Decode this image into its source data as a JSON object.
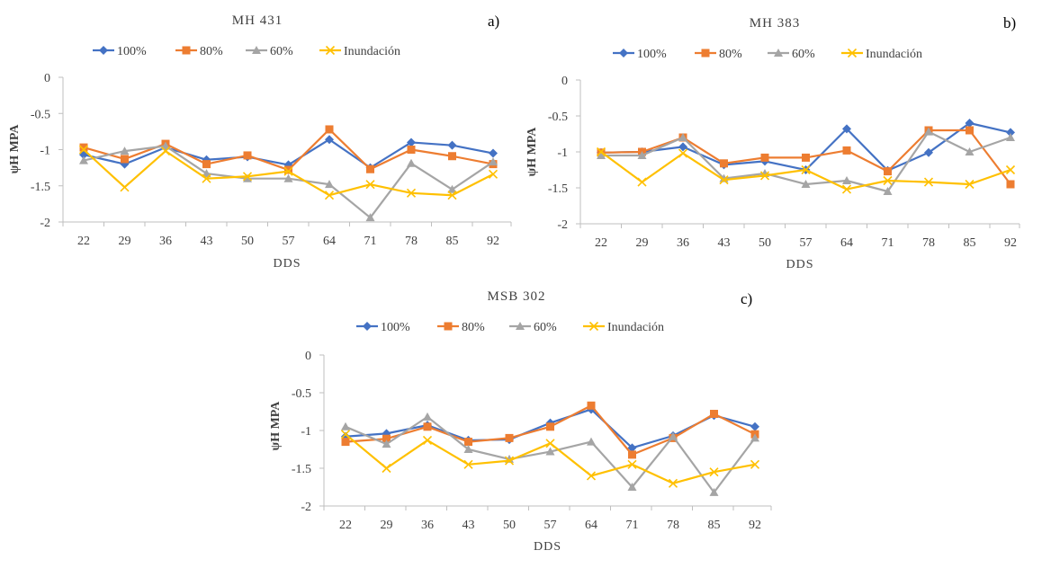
{
  "colors": {
    "100%": "#4472c4",
    "80%": "#ed7d31",
    "60%": "#a5a5a5",
    "Inundación": "#ffc000"
  },
  "chart_data": [
    {
      "type": "line",
      "title": "MH 431",
      "panel_label": "a)",
      "xlabel": "DDS",
      "ylabel": "ψH MPA",
      "categories": [
        "22",
        "29",
        "36",
        "43",
        "50",
        "57",
        "64",
        "71",
        "78",
        "85",
        "92"
      ],
      "ylim": [
        -2,
        0
      ],
      "yticks": [
        "0",
        "-0.5",
        "-1",
        "-1.5",
        "-2"
      ],
      "legend_position": "top",
      "series": [
        {
          "name": "100%",
          "values": [
            -1.07,
            -1.2,
            -0.97,
            -1.14,
            -1.1,
            -1.21,
            -0.86,
            -1.25,
            -0.9,
            -0.94,
            -1.05
          ]
        },
        {
          "name": "80%",
          "values": [
            -0.97,
            -1.13,
            -0.92,
            -1.2,
            -1.08,
            -1.28,
            -0.72,
            -1.27,
            -1.0,
            -1.09,
            -1.2
          ]
        },
        {
          "name": "60%",
          "values": [
            -1.15,
            -1.02,
            -0.95,
            -1.33,
            -1.4,
            -1.4,
            -1.48,
            -1.94,
            -1.19,
            -1.55,
            -1.17
          ]
        },
        {
          "name": "Inundación",
          "values": [
            -1.0,
            -1.52,
            -1.02,
            -1.4,
            -1.37,
            -1.3,
            -1.63,
            -1.48,
            -1.6,
            -1.63,
            -1.34
          ]
        }
      ]
    },
    {
      "type": "line",
      "title": "MH 383",
      "panel_label": "b)",
      "xlabel": "DDS",
      "ylabel": "ψH MPA",
      "categories": [
        "22",
        "29",
        "36",
        "43",
        "50",
        "57",
        "64",
        "71",
        "78",
        "85",
        "92"
      ],
      "ylim": [
        -2,
        0
      ],
      "yticks": [
        "0",
        "-0.5",
        "-1",
        "-1.5",
        "-2"
      ],
      "legend_position": "top",
      "series": [
        {
          "name": "100%",
          "values": [
            -1.01,
            -1.0,
            -0.93,
            -1.18,
            -1.13,
            -1.25,
            -0.68,
            -1.26,
            -1.01,
            -0.6,
            -0.73
          ]
        },
        {
          "name": "80%",
          "values": [
            -1.01,
            -1.0,
            -0.8,
            -1.16,
            -1.08,
            -1.08,
            -0.98,
            -1.27,
            -0.7,
            -0.7,
            -1.45
          ]
        },
        {
          "name": "60%",
          "values": [
            -1.05,
            -1.05,
            -0.8,
            -1.37,
            -1.3,
            -1.45,
            -1.4,
            -1.55,
            -0.72,
            -1.0,
            -0.8
          ]
        },
        {
          "name": "Inundación",
          "values": [
            -1.0,
            -1.42,
            -1.02,
            -1.39,
            -1.33,
            -1.25,
            -1.52,
            -1.4,
            -1.42,
            -1.45,
            -1.25
          ]
        }
      ]
    },
    {
      "type": "line",
      "title": "MSB 302",
      "panel_label": "c)",
      "xlabel": "DDS",
      "ylabel": "ψH MPA",
      "categories": [
        "22",
        "29",
        "36",
        "43",
        "50",
        "57",
        "64",
        "71",
        "78",
        "85",
        "92"
      ],
      "ylim": [
        -2,
        0
      ],
      "yticks": [
        "0",
        "-0.5",
        "-1",
        "-1.5",
        "-2"
      ],
      "legend_position": "top",
      "series": [
        {
          "name": "100%",
          "values": [
            -1.08,
            -1.04,
            -0.93,
            -1.13,
            -1.12,
            -0.9,
            -0.72,
            -1.23,
            -1.07,
            -0.8,
            -0.95
          ]
        },
        {
          "name": "80%",
          "values": [
            -1.15,
            -1.11,
            -0.95,
            -1.15,
            -1.1,
            -0.95,
            -0.67,
            -1.32,
            -1.1,
            -0.78,
            -1.05
          ]
        },
        {
          "name": "60%",
          "values": [
            -0.95,
            -1.18,
            -0.82,
            -1.25,
            -1.38,
            -1.28,
            -1.15,
            -1.75,
            -1.08,
            -1.82,
            -1.1
          ]
        },
        {
          "name": "Inundación",
          "values": [
            -1.05,
            -1.5,
            -1.13,
            -1.45,
            -1.4,
            -1.17,
            -1.6,
            -1.45,
            -1.7,
            -1.55,
            -1.45
          ]
        }
      ]
    }
  ]
}
